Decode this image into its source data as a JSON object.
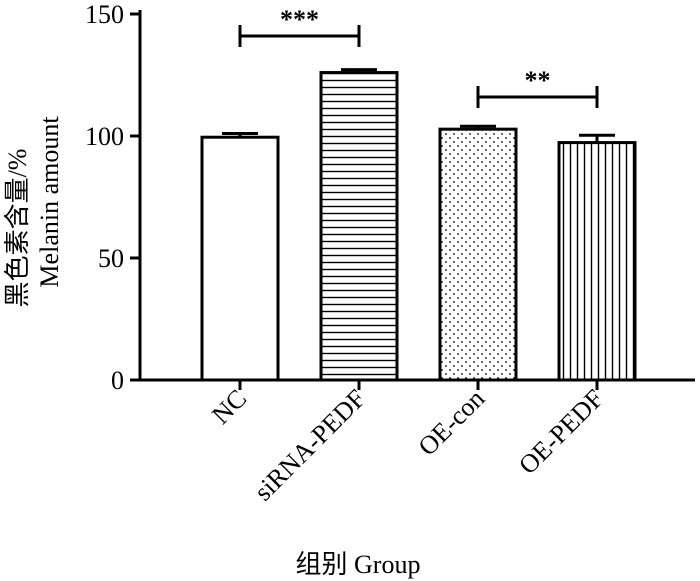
{
  "chart_data": {
    "type": "bar",
    "categories": [
      "NC",
      "siRNA-PEDF",
      "OE-con",
      "OE-PEDF"
    ],
    "values": [
      99.5,
      126,
      102.8,
      97.3
    ],
    "errors": [
      1.5,
      1.2,
      1.2,
      3.0
    ],
    "bar_patterns": [
      "none",
      "horizontal-lines",
      "dots",
      "vertical-lines"
    ],
    "ylim": [
      0,
      150
    ],
    "yticks": [
      0,
      50,
      100,
      150
    ],
    "ylabel_line1": "黑色素含量/%",
    "ylabel_line2": "Melanin amount",
    "xlabel": "组别 Group",
    "significance": [
      {
        "from": 0,
        "to": 1,
        "label": "***",
        "y": 141
      },
      {
        "from": 2,
        "to": 3,
        "label": "**",
        "y": 116
      }
    ],
    "grid": false,
    "legend": "none",
    "colors": {
      "bar_fill": "#ffffff",
      "stroke": "#000000"
    }
  }
}
